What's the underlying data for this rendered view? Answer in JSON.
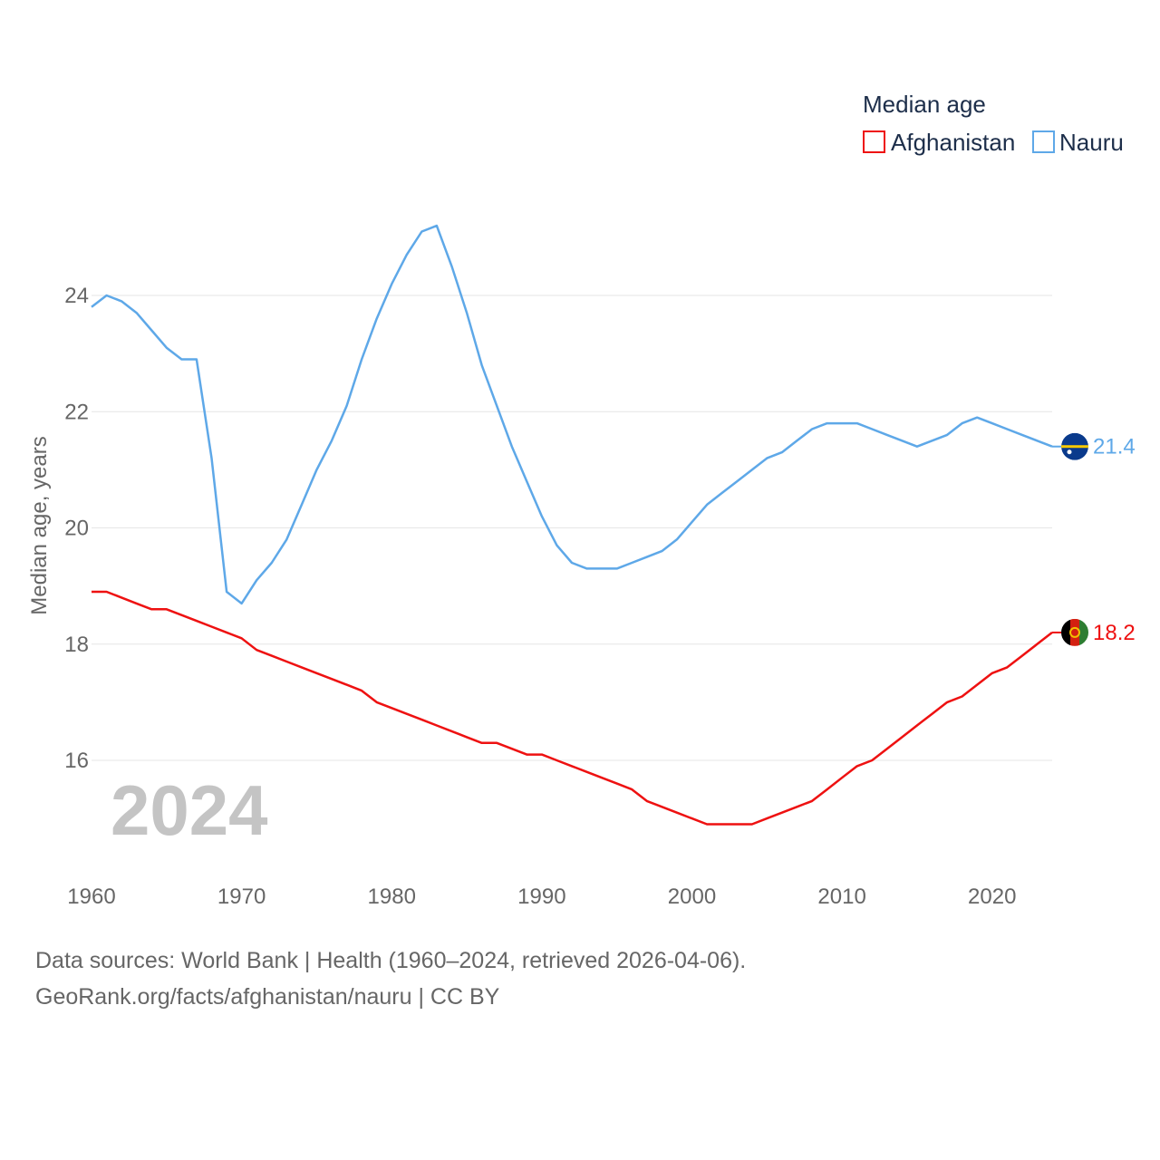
{
  "legend": {
    "title": "Median age",
    "items": [
      {
        "label": "Afghanistan",
        "color": "#ee1111"
      },
      {
        "label": "Nauru",
        "color": "#5ea8e8"
      }
    ]
  },
  "watermark_year": "2024",
  "footer": {
    "line1": "Data sources: World Bank | Health (1960–2024, retrieved 2026-04-06).",
    "line2": "GeoRank.org/facts/afghanistan/nauru | CC BY"
  },
  "end_labels": {
    "afghanistan": "18.2",
    "nauru": "21.4"
  },
  "flags": {
    "afghanistan": "afghanistan-flag-icon",
    "nauru": "nauru-flag-icon"
  },
  "chart_data": {
    "type": "line",
    "title": "Median age",
    "xlabel": "",
    "ylabel": "Median age, years",
    "xlim": [
      1960,
      2024
    ],
    "ylim": [
      14.5,
      25.5
    ],
    "x_ticks": [
      1960,
      1970,
      1980,
      1990,
      2000,
      2010,
      2020
    ],
    "y_ticks": [
      16,
      18,
      20,
      22,
      24
    ],
    "grid": true,
    "legend_position": "top-right",
    "x": [
      1960,
      1961,
      1962,
      1963,
      1964,
      1965,
      1966,
      1967,
      1968,
      1969,
      1970,
      1971,
      1972,
      1973,
      1974,
      1975,
      1976,
      1977,
      1978,
      1979,
      1980,
      1981,
      1982,
      1983,
      1984,
      1985,
      1986,
      1987,
      1988,
      1989,
      1990,
      1991,
      1992,
      1993,
      1994,
      1995,
      1996,
      1997,
      1998,
      1999,
      2000,
      2001,
      2002,
      2003,
      2004,
      2005,
      2006,
      2007,
      2008,
      2009,
      2010,
      2011,
      2012,
      2013,
      2014,
      2015,
      2016,
      2017,
      2018,
      2019,
      2020,
      2021,
      2022,
      2023,
      2024
    ],
    "series": [
      {
        "name": "Afghanistan",
        "color": "#ee1111",
        "values": [
          18.9,
          18.9,
          18.8,
          18.7,
          18.6,
          18.6,
          18.5,
          18.4,
          18.3,
          18.2,
          18.1,
          17.9,
          17.8,
          17.7,
          17.6,
          17.5,
          17.4,
          17.3,
          17.2,
          17.0,
          16.9,
          16.8,
          16.7,
          16.6,
          16.5,
          16.4,
          16.3,
          16.3,
          16.2,
          16.1,
          16.1,
          16.0,
          15.9,
          15.8,
          15.7,
          15.6,
          15.5,
          15.3,
          15.2,
          15.1,
          15.0,
          14.9,
          14.9,
          14.9,
          14.9,
          15.0,
          15.1,
          15.2,
          15.3,
          15.5,
          15.7,
          15.9,
          16.0,
          16.2,
          16.4,
          16.6,
          16.8,
          17.0,
          17.1,
          17.3,
          17.5,
          17.6,
          17.8,
          18.0,
          18.2
        ]
      },
      {
        "name": "Nauru",
        "color": "#5ea8e8",
        "values": [
          23.8,
          24.0,
          23.9,
          23.7,
          23.4,
          23.1,
          22.9,
          22.9,
          21.2,
          18.9,
          18.7,
          19.1,
          19.4,
          19.8,
          20.4,
          21.0,
          21.5,
          22.1,
          22.9,
          23.6,
          24.2,
          24.7,
          25.1,
          25.2,
          24.5,
          23.7,
          22.8,
          22.1,
          21.4,
          20.8,
          20.2,
          19.7,
          19.4,
          19.3,
          19.3,
          19.3,
          19.4,
          19.5,
          19.6,
          19.8,
          20.1,
          20.4,
          20.6,
          20.8,
          21.0,
          21.2,
          21.3,
          21.5,
          21.7,
          21.8,
          21.8,
          21.8,
          21.7,
          21.6,
          21.5,
          21.4,
          21.5,
          21.6,
          21.8,
          21.9,
          21.8,
          21.7,
          21.6,
          21.5,
          21.4
        ]
      }
    ]
  }
}
